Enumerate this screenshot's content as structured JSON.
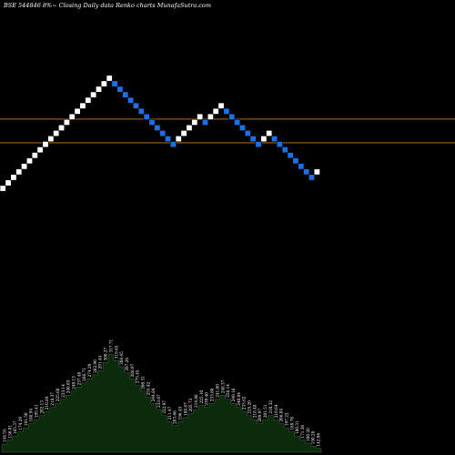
{
  "header": {
    "title": "BSE 544846  8%~  Closing Daily data  Renko  charts MunafaSutra.com"
  },
  "chart_data": {
    "type": "renko",
    "title": "BSE 544846  8%~  Closing Daily data  Renko  charts MunafaSutra.com",
    "xlabel": "",
    "ylabel": "",
    "price_range": [
      0,
      140
    ],
    "reference_lines": [
      72,
      47
    ],
    "colors": {
      "up_brick": "#ffffff",
      "down_brick": "#1e6fe0",
      "reference_line": "#c8822a",
      "volume_fill": "#0c2a0c",
      "volume_edge": "#3a6a3a",
      "background": "#000000"
    },
    "bricks": [
      {
        "dir": "up",
        "level": 0
      },
      {
        "dir": "up",
        "level": 1
      },
      {
        "dir": "up",
        "level": 2
      },
      {
        "dir": "up",
        "level": 3
      },
      {
        "dir": "up",
        "level": 4
      },
      {
        "dir": "up",
        "level": 5
      },
      {
        "dir": "up",
        "level": 6
      },
      {
        "dir": "up",
        "level": 7
      },
      {
        "dir": "up",
        "level": 8
      },
      {
        "dir": "up",
        "level": 9
      },
      {
        "dir": "up",
        "level": 10
      },
      {
        "dir": "up",
        "level": 11
      },
      {
        "dir": "up",
        "level": 12
      },
      {
        "dir": "up",
        "level": 13
      },
      {
        "dir": "up",
        "level": 14
      },
      {
        "dir": "up",
        "level": 15
      },
      {
        "dir": "up",
        "level": 16
      },
      {
        "dir": "up",
        "level": 17
      },
      {
        "dir": "up",
        "level": 18
      },
      {
        "dir": "up",
        "level": 19
      },
      {
        "dir": "up",
        "level": 20
      },
      {
        "dir": "down",
        "level": 19
      },
      {
        "dir": "down",
        "level": 18
      },
      {
        "dir": "down",
        "level": 17
      },
      {
        "dir": "down",
        "level": 16
      },
      {
        "dir": "down",
        "level": 15
      },
      {
        "dir": "down",
        "level": 14
      },
      {
        "dir": "down",
        "level": 13
      },
      {
        "dir": "down",
        "level": 12
      },
      {
        "dir": "down",
        "level": 11
      },
      {
        "dir": "down",
        "level": 10
      },
      {
        "dir": "down",
        "level": 9
      },
      {
        "dir": "down",
        "level": 8
      },
      {
        "dir": "up",
        "level": 9
      },
      {
        "dir": "up",
        "level": 10
      },
      {
        "dir": "up",
        "level": 11
      },
      {
        "dir": "up",
        "level": 12
      },
      {
        "dir": "up",
        "level": 13
      },
      {
        "dir": "down",
        "level": 12
      },
      {
        "dir": "up",
        "level": 13
      },
      {
        "dir": "up",
        "level": 14
      },
      {
        "dir": "up",
        "level": 15
      },
      {
        "dir": "down",
        "level": 14
      },
      {
        "dir": "down",
        "level": 13
      },
      {
        "dir": "down",
        "level": 12
      },
      {
        "dir": "down",
        "level": 11
      },
      {
        "dir": "down",
        "level": 10
      },
      {
        "dir": "down",
        "level": 9
      },
      {
        "dir": "down",
        "level": 8
      },
      {
        "dir": "up",
        "level": 9
      },
      {
        "dir": "up",
        "level": 10
      },
      {
        "dir": "down",
        "level": 9
      },
      {
        "dir": "down",
        "level": 8
      },
      {
        "dir": "down",
        "level": 7
      },
      {
        "dir": "down",
        "level": 6
      },
      {
        "dir": "down",
        "level": 5
      },
      {
        "dir": "down",
        "level": 4
      },
      {
        "dir": "down",
        "level": 3
      },
      {
        "dir": "down",
        "level": 2
      },
      {
        "dir": "up",
        "level": 3
      }
    ],
    "volume": [
      8,
      12,
      16,
      20,
      24,
      28,
      32,
      36,
      40,
      44,
      48,
      52,
      56,
      60,
      64,
      68,
      72,
      76,
      80,
      88,
      96,
      90,
      84,
      78,
      72,
      66,
      60,
      54,
      48,
      42,
      36,
      30,
      26,
      30,
      34,
      38,
      42,
      46,
      44,
      48,
      52,
      56,
      52,
      48,
      44,
      40,
      36,
      32,
      28,
      32,
      36,
      32,
      28,
      24,
      20,
      16,
      12,
      9,
      6,
      4
    ],
    "volume_labels": [
      "144.55",
      "156.01",
      "165.37",
      "174.29",
      "181.50",
      "188.94",
      "195.41",
      "202.13",
      "210.84",
      "218.37",
      "225.60",
      "233.14",
      "240.85",
      "249.13",
      "257.48",
      "266.71",
      "274.29",
      "282.96",
      "291.44",
      "300.27",
      "317.71",
      "319.65",
      "308.45",
      "297.26",
      "286.97",
      "275.45",
      "266.31",
      "255.42",
      "244.84",
      "233.67",
      "222.97",
      "211.47",
      "203.66",
      "196.45",
      "188.87",
      "205.73",
      "214.88",
      "225.10",
      "239.40",
      "233.88",
      "241.60",
      "248.37",
      "256.14",
      "249.16",
      "240.04",
      "233.62",
      "225.20",
      "218.48",
      "209.97",
      "201.51",
      "210.32",
      "219.64",
      "206.84",
      "197.22",
      "189.70",
      "180.31",
      "171.36",
      "160.20",
      "150.28",
      "142.96"
    ]
  }
}
